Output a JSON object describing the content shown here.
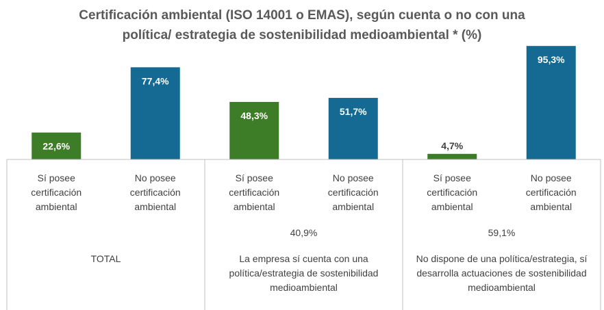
{
  "chart_data": {
    "type": "bar",
    "title": "Certificación ambiental (ISO 14001 o EMAS), según cuenta o no con una política/ estrategia de sostenibilidad medioambiental * (%)",
    "categories": [
      "Sí posee certificación ambiental",
      "No posee certificación ambiental",
      "Sí posee certificación ambiental",
      "No posee certificación ambiental",
      "Sí posee certificación ambiental",
      "No posee certificación ambiental"
    ],
    "values": [
      22.6,
      77.4,
      48.3,
      51.7,
      4.7,
      95.3
    ],
    "value_labels": [
      "22,6%",
      "77,4%",
      "48,3%",
      "51,7%",
      "4,7%",
      "95,3%"
    ],
    "colors": [
      "#3e7d27",
      "#146a93",
      "#3e7d27",
      "#146a93",
      "#3e7d27",
      "#146a93"
    ],
    "groups": [
      {
        "name": "TOTAL",
        "share": null,
        "share_label": null
      },
      {
        "name": "La empresa sí cuenta con una política/estrategia de sostenibilidad medioambiental",
        "share": 40.9,
        "share_label": "40,9%"
      },
      {
        "name": "No dispone de una política/estrategia, sí desarrolla actuaciones de sostenibilidad medioambiental",
        "share": 59.1,
        "share_label": "59,1%"
      }
    ],
    "ylim": [
      0,
      100
    ]
  }
}
